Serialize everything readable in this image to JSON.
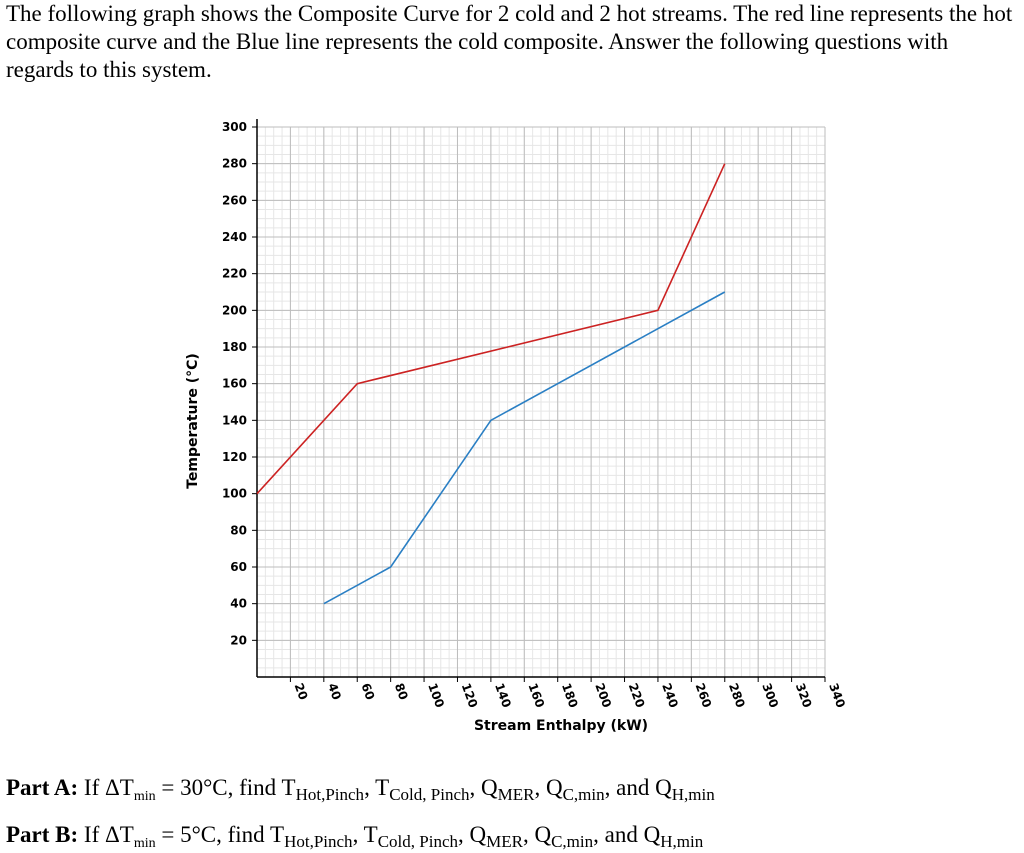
{
  "intro_text": "The following graph shows the Composite Curve for 2 cold and 2 hot streams. The red line represents the hot composite curve and the Blue line represents the cold composite. Answer the following questions with regards to this system.",
  "chart_data": {
    "type": "line",
    "xlabel": "Stream Enthalpy (kW)",
    "ylabel": "Temperature (°C)",
    "xlim": [
      0,
      340
    ],
    "ylim": [
      0,
      300
    ],
    "x_ticks": [
      20,
      40,
      60,
      80,
      100,
      120,
      140,
      160,
      180,
      200,
      220,
      240,
      260,
      280,
      300,
      320,
      340
    ],
    "y_ticks": [
      20,
      40,
      60,
      80,
      100,
      120,
      140,
      160,
      180,
      200,
      220,
      240,
      260,
      280,
      300
    ],
    "grid": true,
    "legend": "none",
    "series": [
      {
        "color": "#cc2222",
        "x": [
          0,
          60,
          240,
          280
        ],
        "y": [
          100,
          160,
          200,
          280
        ]
      },
      {
        "color": "#2a7fc4",
        "x": [
          40,
          80,
          140,
          280
        ],
        "y": [
          40,
          60,
          140,
          210
        ]
      }
    ]
  },
  "part_a": {
    "label": "Part A:",
    "text_if": "If ΔT",
    "sub_min": "min",
    "text_eq": " = 30°C, find T",
    "sub_hot": "Hot,Pinch",
    "text_t2": ", T",
    "sub_cold": "Cold, Pinch",
    "text_q1": ", Q",
    "sub_mer": "MER",
    "text_q2": ", Q",
    "sub_cmin": "C,min",
    "text_and": ", and Q",
    "sub_hmin": "H,min"
  },
  "part_b": {
    "label": "Part B:",
    "text_if": "If ΔT",
    "sub_min": "min",
    "text_eq": " = 5°C, find T",
    "sub_hot": "Hot,Pinch",
    "text_t2": ", T",
    "sub_cold": "Cold, Pinch",
    "text_q1": ", Q",
    "sub_mer": "MER",
    "text_q2": ", Q",
    "sub_cmin": "C,min",
    "text_and": ", and Q",
    "sub_hmin": "H,min"
  }
}
